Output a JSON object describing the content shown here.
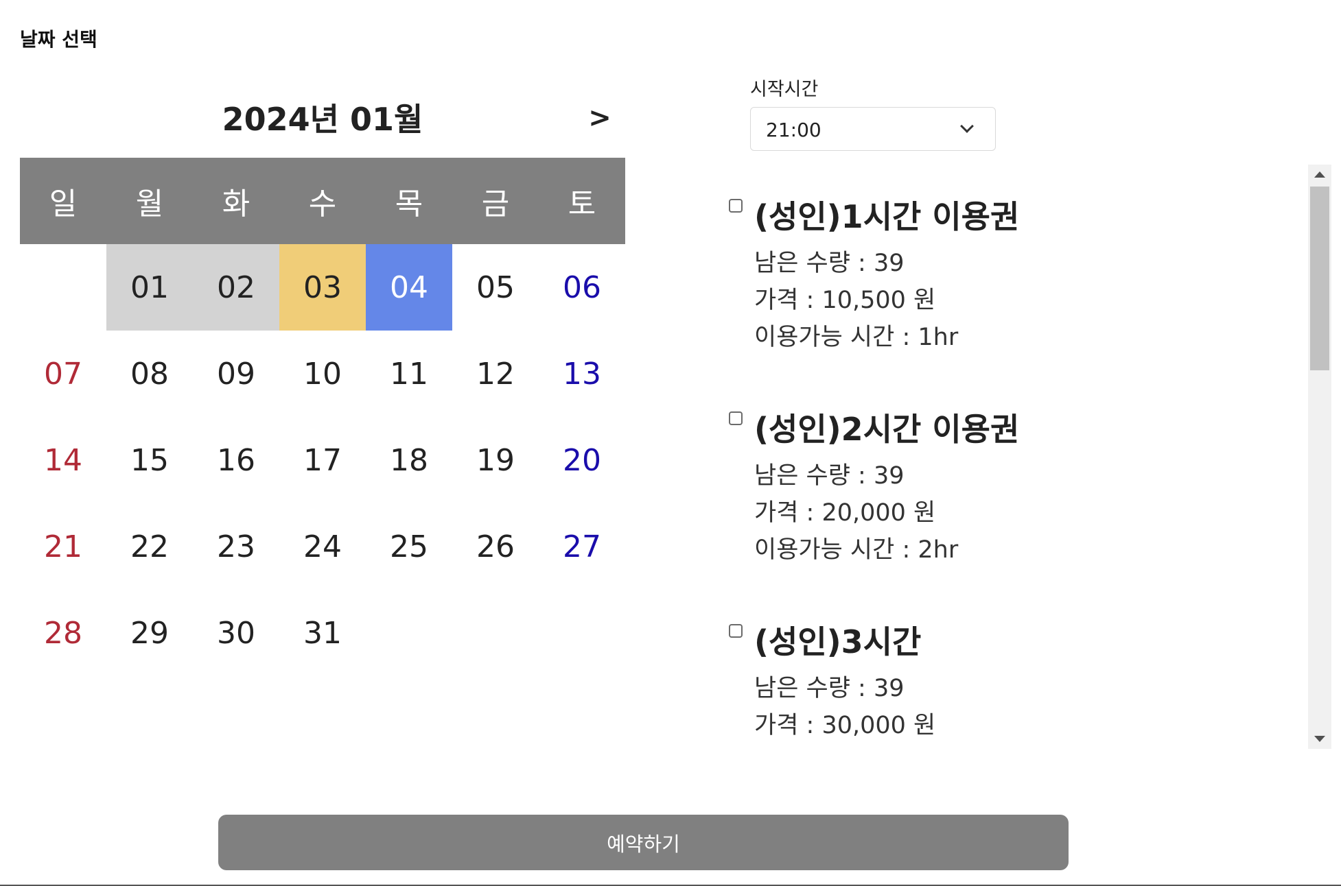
{
  "page": {
    "title": "날짜 선택"
  },
  "calendar": {
    "month_title": "2024년 01월",
    "next_label": ">",
    "weekdays": [
      "일",
      "월",
      "화",
      "수",
      "목",
      "금",
      "토"
    ],
    "days": [
      "",
      "01",
      "02",
      "03",
      "04",
      "05",
      "06",
      "07",
      "08",
      "09",
      "10",
      "11",
      "12",
      "13",
      "14",
      "15",
      "16",
      "17",
      "18",
      "19",
      "20",
      "21",
      "22",
      "23",
      "24",
      "25",
      "26",
      "27",
      "28",
      "29",
      "30",
      "31"
    ],
    "past_days": [
      "01",
      "02"
    ],
    "today": "03",
    "selected_day": "04",
    "colors": {
      "header_bg": "#808080",
      "past_bg": "#d3d3d3",
      "today_bg": "#f0cd78",
      "selected_bg": "#6487e8",
      "sunday": "#b02a37",
      "saturday": "#1a0dab"
    }
  },
  "time": {
    "label": "시작시간",
    "selected": "21:00"
  },
  "tickets": [
    {
      "title": "(성인)1시간 이용권",
      "remaining": "남은 수량 : 39",
      "price": "가격 : 10,500 원",
      "duration": "이용가능 시간 : 1hr",
      "checked": false
    },
    {
      "title": "(성인)2시간 이용권",
      "remaining": "남은 수량 : 39",
      "price": "가격 : 20,000 원",
      "duration": "이용가능 시간 : 2hr",
      "checked": false
    },
    {
      "title": "(성인)3시간",
      "remaining": "남은 수량 : 39",
      "price": "가격 : 30,000 원",
      "checked": false
    }
  ],
  "actions": {
    "reserve_label": "예약하기"
  }
}
